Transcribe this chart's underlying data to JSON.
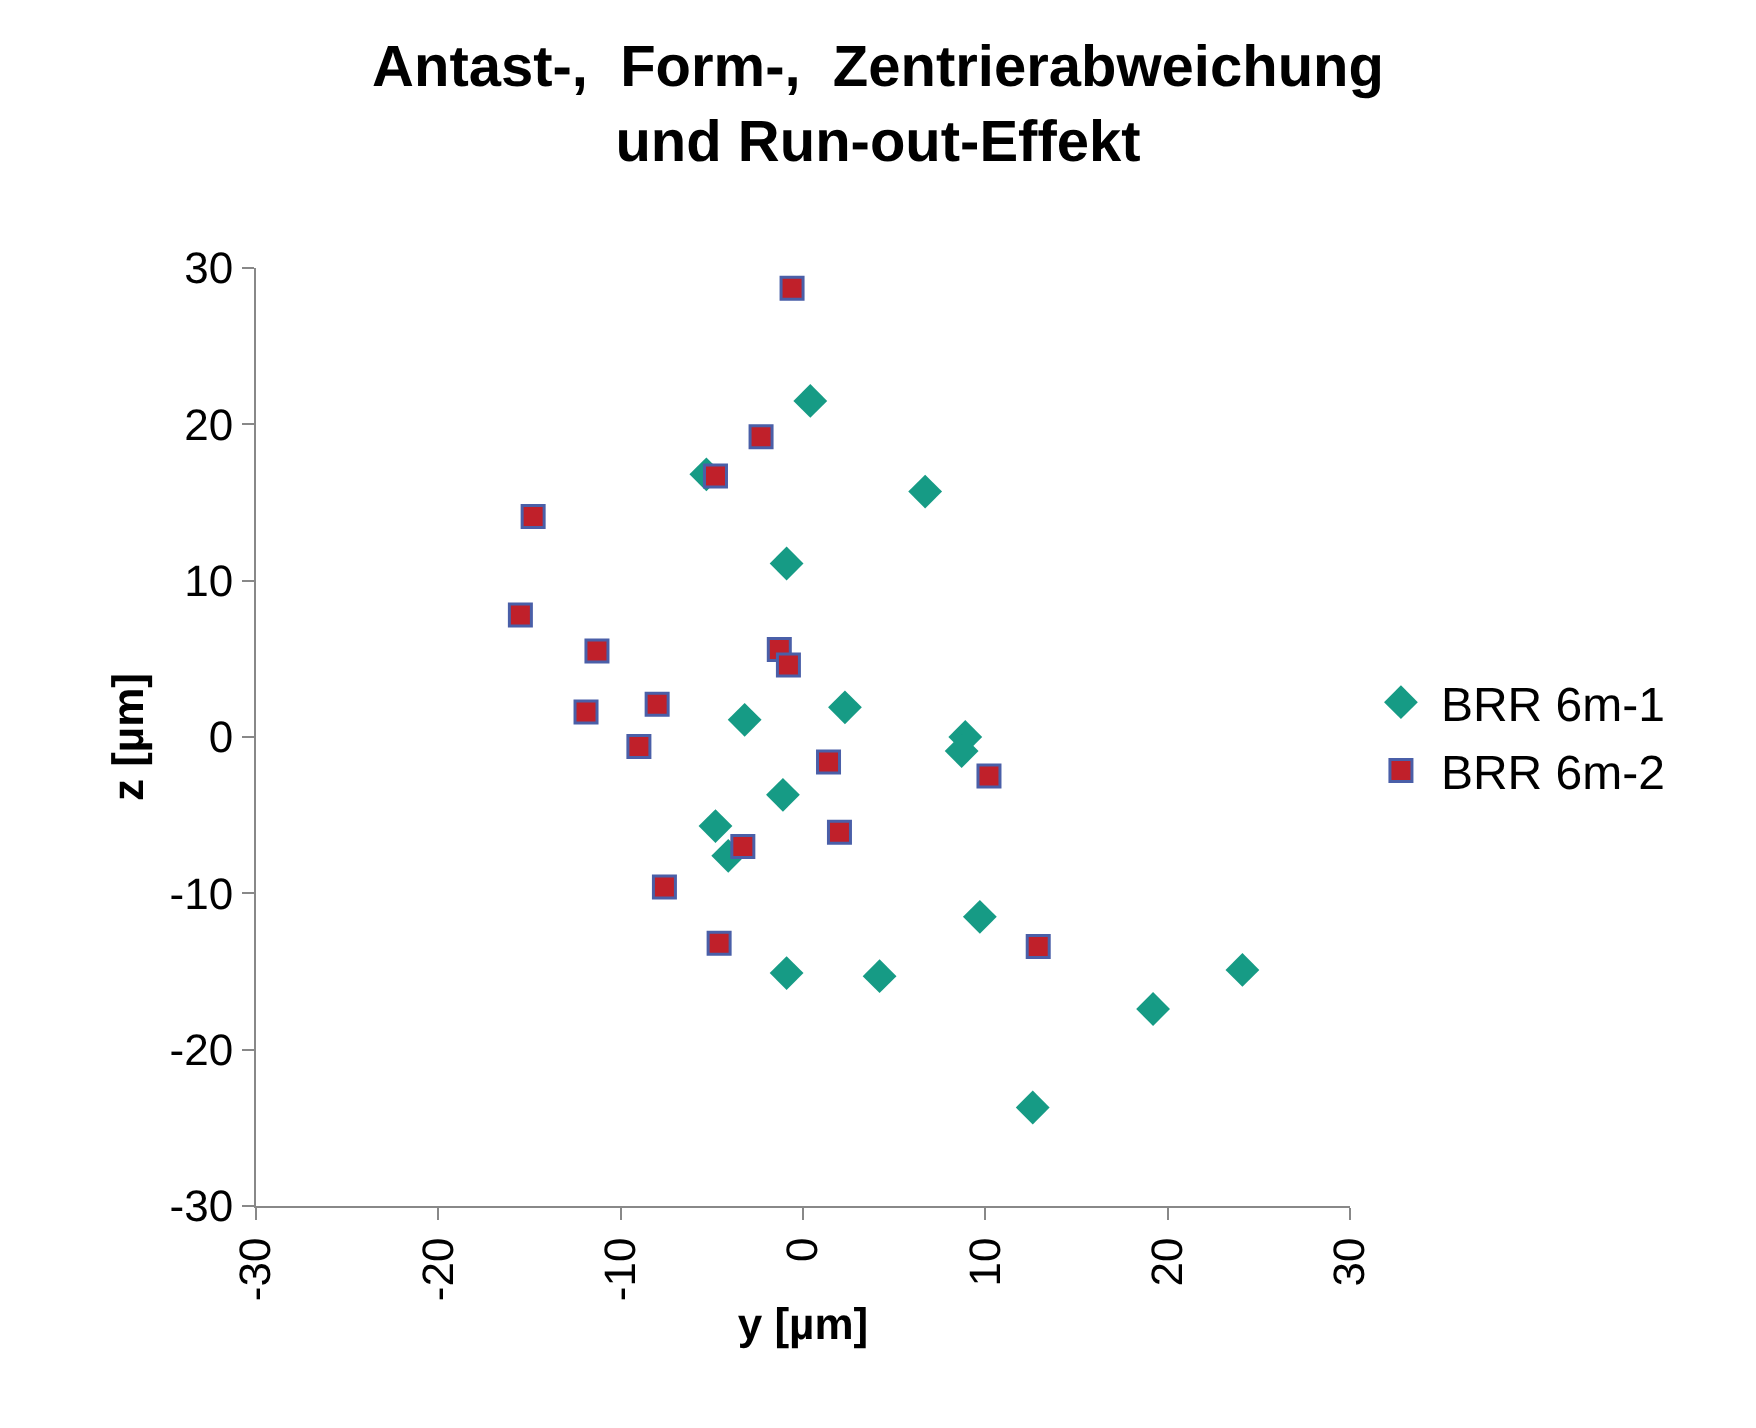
{
  "chart_data": {
    "type": "scatter",
    "title": "Antast-,  Form-,  Zentrierabweichung\nund Run-out-Effekt",
    "xlabel": "y [µm]",
    "ylabel": "z [µm]",
    "xlim": [
      -30,
      30
    ],
    "xticks": [
      -30,
      -20,
      -10,
      0,
      10,
      20,
      30
    ],
    "ylim": [
      -30,
      30
    ],
    "yticks": [
      -30,
      -20,
      -10,
      0,
      10,
      20,
      30
    ],
    "legend": "right",
    "series": [
      {
        "name": "BRR 6m-1",
        "color": "#169b85",
        "marker": "diamond",
        "x": [
          0.4,
          6.7,
          -5.3,
          -0.9,
          -3.2,
          2.3,
          8.9,
          8.7,
          -1.1,
          -4.8,
          -4.1,
          9.7,
          -0.9,
          4.2,
          24.1,
          19.2,
          12.6
        ],
        "values": [
          21.5,
          15.7,
          16.8,
          11.1,
          1.1,
          1.9,
          0.0,
          -0.9,
          -3.7,
          -5.7,
          -7.6,
          -11.5,
          -15.1,
          -15.3,
          -14.9,
          -17.4,
          -23.7
        ]
      },
      {
        "name": "BRR 6m-2",
        "color": "#c0202a",
        "marker": "square",
        "x": [
          -0.6,
          -2.3,
          -4.8,
          -14.8,
          -15.5,
          -11.3,
          -1.3,
          -0.8,
          -11.9,
          -8.0,
          -9.0,
          1.4,
          10.2,
          2.0,
          -3.3,
          -7.6,
          -4.6,
          12.9
        ],
        "values": [
          28.7,
          19.2,
          16.7,
          14.1,
          7.8,
          5.5,
          5.6,
          4.6,
          1.6,
          2.1,
          -0.6,
          -1.6,
          -2.5,
          -6.1,
          -7.0,
          -9.6,
          -13.2,
          -13.4
        ]
      }
    ]
  }
}
